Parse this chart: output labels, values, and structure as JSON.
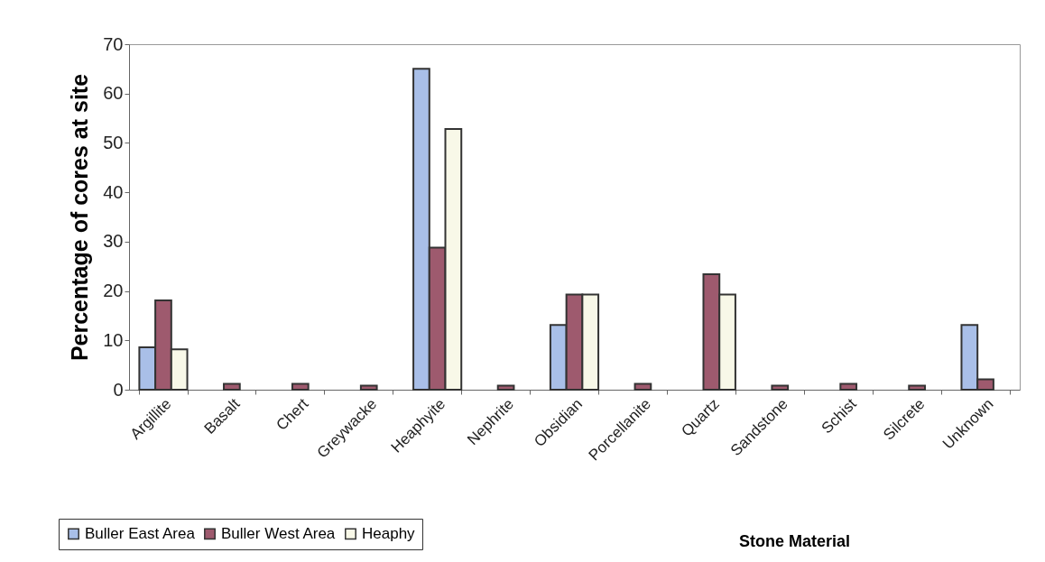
{
  "chart_data": {
    "type": "bar",
    "xlabel": "Stone Material",
    "ylabel": "Percentage of cores at site",
    "categories": [
      "Argillite",
      "Basalt",
      "Chert",
      "Greywacke",
      "Heaphyite",
      "Nephrite",
      "Obsidian",
      "Porcellanite",
      "Quartz",
      "Sandstone",
      "Schist",
      "Silcrete",
      "Unknown"
    ],
    "series": [
      {
        "name": "Buller East Area",
        "color": "#a9bfe8",
        "values": [
          8.6,
          null,
          null,
          null,
          65,
          null,
          13.1,
          null,
          null,
          null,
          null,
          null,
          13.1
        ]
      },
      {
        "name": "Buller West Area",
        "color": "#9e5a6e",
        "values": [
          18.1,
          1.2,
          1.2,
          0.8,
          28.8,
          0.8,
          19.3,
          1.2,
          23.4,
          0.8,
          1.2,
          0.8,
          2.1
        ]
      },
      {
        "name": "Heaphy",
        "color": "#f8f8e8",
        "values": [
          8.2,
          null,
          null,
          null,
          52.8,
          null,
          19.3,
          null,
          19.3,
          null,
          null,
          null,
          null
        ]
      }
    ],
    "ylim": [
      0,
      70
    ],
    "yticks": [
      0,
      10,
      20,
      30,
      40,
      50,
      60,
      70
    ],
    "grid": false,
    "legend": "bottom left"
  }
}
